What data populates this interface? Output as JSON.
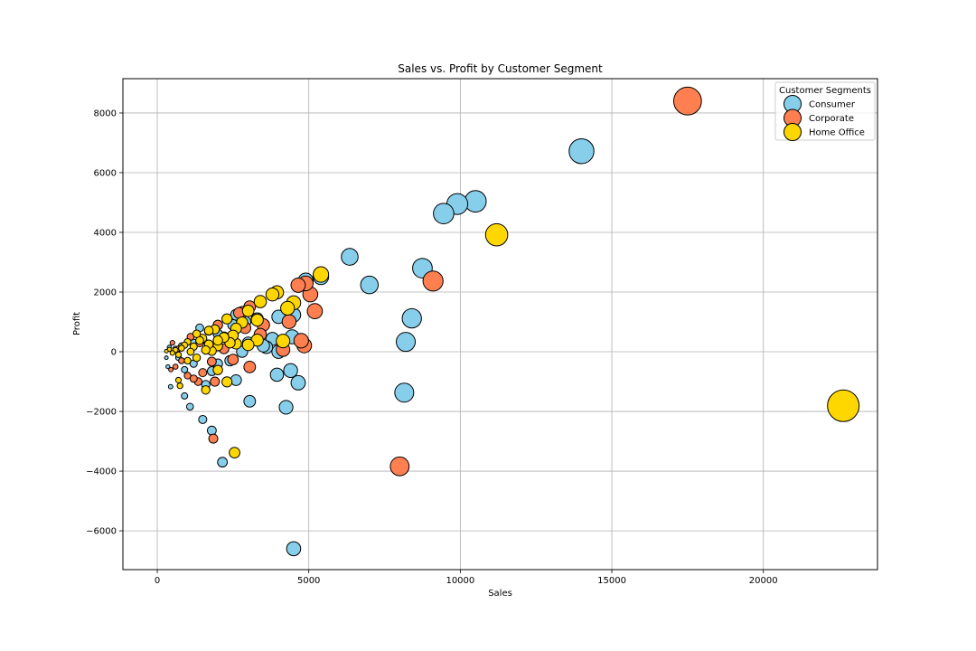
{
  "chart_data": {
    "type": "scatter",
    "title": "Sales vs. Profit by Customer Segment",
    "xlabel": "Sales",
    "ylabel": "Profit",
    "xlim": [
      -1134,
      23766
    ],
    "ylim": [
      -7300,
      9150
    ],
    "xticks": [
      0,
      5000,
      10000,
      15000,
      20000
    ],
    "yticks": [
      -6000,
      -4000,
      -2000,
      0,
      2000,
      4000,
      6000,
      8000
    ],
    "grid": true,
    "legend": {
      "title": "Customer Segments",
      "placement": "top-right"
    },
    "size_encoding": "marker area proportional to Sales",
    "series": [
      {
        "name": "Consumer",
        "color": "#87CEEB",
        "points": [
          [
            13999,
            6720
          ],
          [
            10500,
            5040
          ],
          [
            9900,
            4950
          ],
          [
            9450,
            4630
          ],
          [
            8750,
            2800
          ],
          [
            7000,
            2240
          ],
          [
            6350,
            3180
          ],
          [
            5400,
            2510
          ],
          [
            4900,
            2390
          ],
          [
            8400,
            1120
          ],
          [
            8200,
            330
          ],
          [
            8150,
            -1370
          ],
          [
            4650,
            -1040
          ],
          [
            4250,
            -1860
          ],
          [
            4400,
            -630
          ],
          [
            3950,
            -770
          ],
          [
            3050,
            -1660
          ],
          [
            4500,
            -6600
          ],
          [
            2150,
            -3700
          ],
          [
            1800,
            -2640
          ],
          [
            1500,
            -2270
          ],
          [
            1080,
            -1840
          ],
          [
            900,
            -1480
          ],
          [
            440,
            -1170
          ],
          [
            4500,
            1230
          ],
          [
            4000,
            1170
          ],
          [
            4450,
            500
          ],
          [
            4000,
            0
          ],
          [
            3500,
            200
          ],
          [
            3600,
            150
          ],
          [
            3800,
            430
          ],
          [
            2600,
            1240
          ],
          [
            2400,
            -300
          ],
          [
            2600,
            -950
          ],
          [
            2000,
            -400
          ],
          [
            1800,
            -650
          ],
          [
            1600,
            -1100
          ],
          [
            1200,
            -400
          ],
          [
            900,
            -600
          ],
          [
            2000,
            600
          ],
          [
            2900,
            1000
          ],
          [
            3300,
            1100
          ],
          [
            3000,
            300
          ],
          [
            2800,
            0
          ],
          [
            1500,
            400
          ],
          [
            1200,
            300
          ],
          [
            800,
            200
          ],
          [
            600,
            100
          ],
          [
            400,
            150
          ],
          [
            300,
            -200
          ],
          [
            350,
            -500
          ],
          [
            700,
            -200
          ],
          [
            1400,
            800
          ],
          [
            2200,
            500
          ],
          [
            2500,
            900
          ]
        ]
      },
      {
        "name": "Corporate",
        "color": "#FF7F50",
        "points": [
          [
            17499,
            8400
          ],
          [
            9100,
            2370
          ],
          [
            8000,
            -3840
          ],
          [
            5200,
            1360
          ],
          [
            5050,
            1920
          ],
          [
            4900,
            2290
          ],
          [
            4650,
            2230
          ],
          [
            4850,
            210
          ],
          [
            4750,
            370
          ],
          [
            4150,
            70
          ],
          [
            4350,
            1010
          ],
          [
            3400,
            580
          ],
          [
            3050,
            1510
          ],
          [
            2800,
            1330
          ],
          [
            3050,
            -510
          ],
          [
            2500,
            -260
          ],
          [
            1850,
            -2910
          ],
          [
            1900,
            -1000
          ],
          [
            1500,
            -700
          ],
          [
            1350,
            -1000
          ],
          [
            1800,
            -330
          ],
          [
            2000,
            900
          ],
          [
            2700,
            1300
          ],
          [
            1200,
            -900
          ],
          [
            1000,
            -800
          ],
          [
            800,
            -300
          ],
          [
            600,
            -500
          ],
          [
            450,
            -600
          ],
          [
            1400,
            300
          ],
          [
            1700,
            700
          ],
          [
            2200,
            100
          ],
          [
            2900,
            800
          ],
          [
            3500,
            900
          ],
          [
            1100,
            500
          ],
          [
            700,
            100
          ],
          [
            500,
            300
          ]
        ]
      },
      {
        "name": "Home Office",
        "color": "#FFD700",
        "points": [
          [
            22638,
            -1810
          ],
          [
            11199,
            3920
          ],
          [
            5400,
            2590
          ],
          [
            4500,
            1640
          ],
          [
            4300,
            1460
          ],
          [
            3950,
            1990
          ],
          [
            3800,
            1920
          ],
          [
            3400,
            1680
          ],
          [
            3300,
            1060
          ],
          [
            3300,
            390
          ],
          [
            3000,
            1370
          ],
          [
            2800,
            980
          ],
          [
            4150,
            360
          ],
          [
            3000,
            230
          ],
          [
            2550,
            -3380
          ],
          [
            2300,
            -1010
          ],
          [
            1600,
            -1280
          ],
          [
            2000,
            -610
          ],
          [
            2300,
            1100
          ],
          [
            2600,
            780
          ],
          [
            2600,
            270
          ],
          [
            2400,
            300
          ],
          [
            2200,
            480
          ],
          [
            2000,
            190
          ],
          [
            1900,
            750
          ],
          [
            1700,
            710
          ],
          [
            1500,
            450
          ],
          [
            1400,
            380
          ],
          [
            1300,
            600
          ],
          [
            1200,
            170
          ],
          [
            1100,
            0
          ],
          [
            1000,
            330
          ],
          [
            900,
            220
          ],
          [
            800,
            120
          ],
          [
            700,
            -100
          ],
          [
            600,
            60
          ],
          [
            500,
            -40
          ],
          [
            700,
            -950
          ],
          [
            750,
            -1140
          ],
          [
            1800,
            30
          ],
          [
            1600,
            60
          ],
          [
            2000,
            380
          ],
          [
            2500,
            550
          ],
          [
            1700,
            250
          ],
          [
            1000,
            -300
          ],
          [
            1300,
            -200
          ],
          [
            400,
            80
          ],
          [
            300,
            20
          ]
        ]
      }
    ]
  }
}
